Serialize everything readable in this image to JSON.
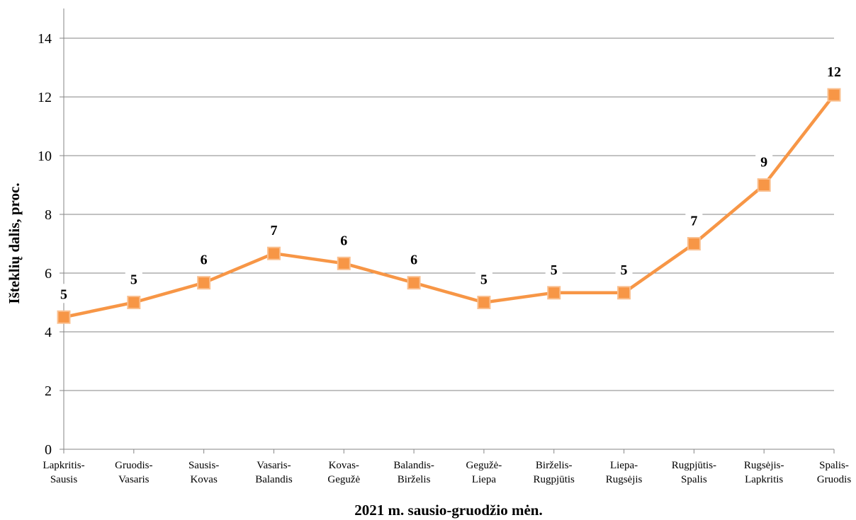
{
  "chart_data": {
    "type": "line",
    "xlabel": "2021 m. sausio-gruodžio mėn.",
    "ylabel": "Išteklių dalis, proc.",
    "ylim": [
      0,
      14
    ],
    "yticks": [
      "0",
      "2",
      "4",
      "6",
      "8",
      "10",
      "12",
      "14"
    ],
    "grid": true,
    "legend": "none",
    "categories": [
      [
        "Lapkritis-",
        "Sausis"
      ],
      [
        "Gruodis-",
        "Vasaris"
      ],
      [
        "Sausis-",
        "Kovas"
      ],
      [
        "Vasaris-",
        "Balandis"
      ],
      [
        "Kovas-",
        "Gegužė"
      ],
      [
        "Balandis-",
        "Birželis"
      ],
      [
        "Gegužė-",
        "Liepa"
      ],
      [
        "Birželis-",
        "Rugpjūtis"
      ],
      [
        "Liepa-",
        "Rugsėjis"
      ],
      [
        "Rugpjūtis-",
        "Spalis"
      ],
      [
        "Rugsėjis-",
        "Lapkritis"
      ],
      [
        "Spalis-",
        "Gruodis"
      ]
    ],
    "values": [
      4.5,
      5.0,
      5.67,
      6.67,
      6.33,
      5.67,
      5.0,
      5.33,
      5.33,
      7.0,
      9.0,
      12.07
    ],
    "data_labels": [
      "5",
      "5",
      "6",
      "7",
      "6",
      "6",
      "5",
      "5",
      "5",
      "7",
      "9",
      "12"
    ],
    "colors": {
      "line": "#F79646",
      "marker_fill": "#F79646",
      "marker_stroke": "#FAC090",
      "grid": "#868686",
      "axis": "#868686"
    }
  }
}
